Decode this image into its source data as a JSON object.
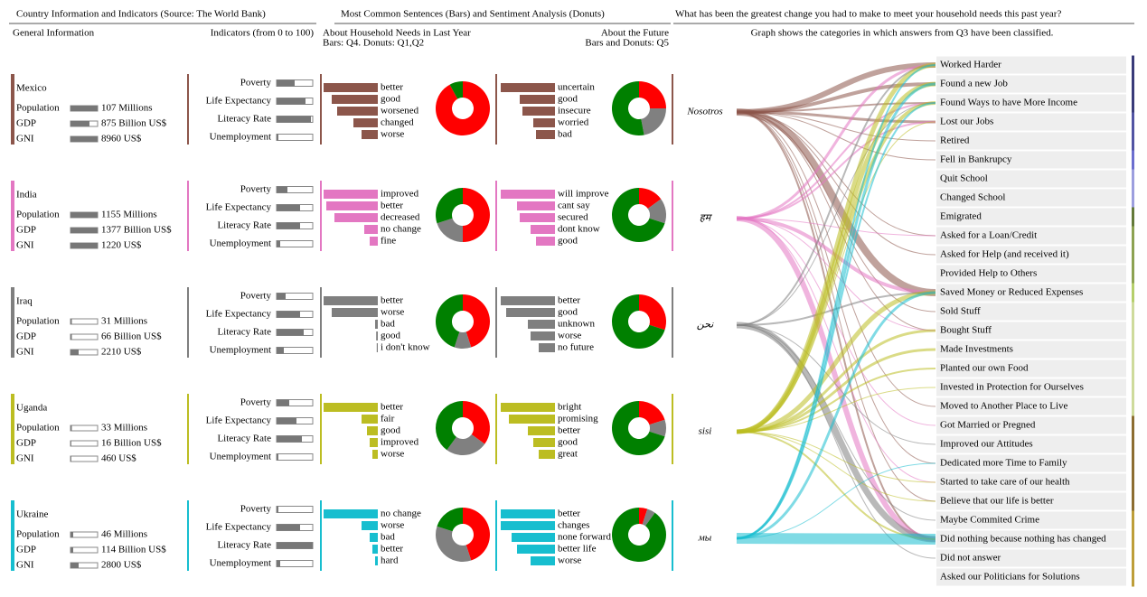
{
  "headers": {
    "info": "Country Information and Indicators (Source: The World Bank)",
    "sentences": "Most Common Sentences (Bars) and Sentiment Analysis (Donuts)",
    "question": "What has been the greatest change you had to make to meet your household needs this past year?"
  },
  "subheaders": {
    "general": "General Information",
    "indicators": "Indicators (from 0 to 100)",
    "needs": [
      "About Household Needs in Last Year",
      "Bars: Q4. Donuts: Q1,Q2"
    ],
    "future": [
      "About the Future",
      "Bars and Donuts: Q5"
    ],
    "graph": "Graph shows the categories in which answers from Q3 have been classified."
  },
  "donut_colors": [
    "#ff0000",
    "#808080",
    "#008000"
  ],
  "countries": [
    {
      "name": "Mexico",
      "color": "#8c564b",
      "word": "Nosotros",
      "info": [
        {
          "label": "Population",
          "text": "107 Millions",
          "bar": 100
        },
        {
          "label": "GDP",
          "text": "875 Billion US$",
          "bar": 70
        },
        {
          "label": "GNI",
          "text": "8960 US$",
          "bar": 100
        }
      ],
      "indicators": [
        {
          "label": "Poverty",
          "value": 50
        },
        {
          "label": "Life Expectancy",
          "value": 80
        },
        {
          "label": "Literacy Rate",
          "value": 95
        },
        {
          "label": "Unemployment",
          "value": 5
        }
      ],
      "needs": {
        "labels": [
          "better",
          "good",
          "worsened",
          "changed",
          "worse"
        ],
        "values": [
          100,
          85,
          75,
          45,
          30
        ],
        "donut": [
          92,
          0,
          8
        ]
      },
      "future": {
        "labels": [
          "uncertain",
          "good",
          "insecure",
          "worried",
          "bad"
        ],
        "values": [
          100,
          65,
          60,
          40,
          35
        ],
        "donut": [
          25,
          22,
          53
        ]
      }
    },
    {
      "name": "India",
      "color": "#e377c2",
      "word": "हम",
      "info": [
        {
          "label": "Population",
          "text": "1155 Millions",
          "bar": 100
        },
        {
          "label": "GDP",
          "text": "1377 Billion US$",
          "bar": 100
        },
        {
          "label": "GNI",
          "text": "1220 US$",
          "bar": 100
        }
      ],
      "indicators": [
        {
          "label": "Poverty",
          "value": 30
        },
        {
          "label": "Life Expectancy",
          "value": 65
        },
        {
          "label": "Literacy Rate",
          "value": 65
        },
        {
          "label": "Unemployment",
          "value": 10
        }
      ],
      "needs": {
        "labels": [
          "improved",
          "better",
          "decreased",
          "no change",
          "fine"
        ],
        "values": [
          100,
          95,
          80,
          25,
          15
        ],
        "donut": [
          50,
          20,
          30
        ]
      },
      "future": {
        "labels": [
          "will improve",
          "cant say",
          "secured",
          "dont know",
          "good"
        ],
        "values": [
          100,
          70,
          65,
          45,
          35
        ],
        "donut": [
          15,
          15,
          70
        ]
      }
    },
    {
      "name": "Iraq",
      "color": "#7f7f7f",
      "word": "نحن",
      "info": [
        {
          "label": "Population",
          "text": "31 Millions",
          "bar": 5
        },
        {
          "label": "GDP",
          "text": "66 Billion US$",
          "bar": 5
        },
        {
          "label": "GNI",
          "text": "2210 US$",
          "bar": 30
        }
      ],
      "indicators": [
        {
          "label": "Poverty",
          "value": 25
        },
        {
          "label": "Life Expectancy",
          "value": 65
        },
        {
          "label": "Literacy Rate",
          "value": 75
        },
        {
          "label": "Unemployment",
          "value": 20
        }
      ],
      "needs": {
        "labels": [
          "better",
          "worse",
          "bad",
          "good",
          "i don't know"
        ],
        "values": [
          100,
          85,
          5,
          3,
          2
        ],
        "donut": [
          45,
          10,
          45
        ]
      },
      "future": {
        "labels": [
          "better",
          "good",
          "unknown",
          "worse",
          "no future"
        ],
        "values": [
          100,
          90,
          50,
          45,
          30
        ],
        "donut": [
          30,
          0,
          70
        ]
      }
    },
    {
      "name": "Uganda",
      "color": "#bcbd22",
      "word": "sisi",
      "info": [
        {
          "label": "Population",
          "text": "33 Millions",
          "bar": 5
        },
        {
          "label": "GDP",
          "text": "16 Billion US$",
          "bar": 3
        },
        {
          "label": "GNI",
          "text": "460 US$",
          "bar": 3
        }
      ],
      "indicators": [
        {
          "label": "Poverty",
          "value": 35
        },
        {
          "label": "Life Expectancy",
          "value": 55
        },
        {
          "label": "Literacy Rate",
          "value": 70
        },
        {
          "label": "Unemployment",
          "value": 5
        }
      ],
      "needs": {
        "labels": [
          "better",
          "fair",
          "good",
          "improved",
          "worse"
        ],
        "values": [
          100,
          30,
          20,
          15,
          10
        ],
        "donut": [
          35,
          25,
          40
        ]
      },
      "future": {
        "labels": [
          "bright",
          "promising",
          "better",
          "good",
          "great"
        ],
        "values": [
          100,
          85,
          50,
          40,
          30
        ],
        "donut": [
          20,
          10,
          70
        ]
      }
    },
    {
      "name": "Ukraine",
      "color": "#17becf",
      "word": "мы",
      "info": [
        {
          "label": "Population",
          "text": "46 Millions",
          "bar": 10
        },
        {
          "label": "GDP",
          "text": "114 Billion US$",
          "bar": 10
        },
        {
          "label": "GNI",
          "text": "2800 US$",
          "bar": 30
        }
      ],
      "indicators": [
        {
          "label": "Poverty",
          "value": 5
        },
        {
          "label": "Life Expectancy",
          "value": 65
        },
        {
          "label": "Literacy Rate",
          "value": 100
        },
        {
          "label": "Unemployment",
          "value": 10
        }
      ],
      "needs": {
        "labels": [
          "no change",
          "worse",
          "bad",
          "better",
          "hard"
        ],
        "values": [
          100,
          30,
          15,
          10,
          5
        ],
        "donut": [
          45,
          35,
          20
        ]
      },
      "future": {
        "labels": [
          "better",
          "changes",
          "none forward",
          "better life",
          "worse"
        ],
        "values": [
          100,
          100,
          80,
          70,
          45
        ],
        "donut": [
          5,
          5,
          90
        ]
      }
    }
  ],
  "categories": [
    {
      "label": "Worked Harder",
      "color": "#393b79"
    },
    {
      "label": "Found a new Job",
      "color": "#393b79"
    },
    {
      "label": "Found Ways to have More Income",
      "color": "#393b79"
    },
    {
      "label": "Lost our Jobs",
      "color": "#5254a3"
    },
    {
      "label": "Retired",
      "color": "#5254a3"
    },
    {
      "label": "Fell in Bankrupcy",
      "color": "#6b6ecf"
    },
    {
      "label": "Quit School",
      "color": "#9c9ede"
    },
    {
      "label": "Changed School",
      "color": "#9c9ede"
    },
    {
      "label": "Emigrated",
      "color": "#637939"
    },
    {
      "label": "Asked for a Loan/Credit",
      "color": "#8ca252"
    },
    {
      "label": "Asked for Help (and received it)",
      "color": "#8ca252"
    },
    {
      "label": "Provided Help to Others",
      "color": "#8ca252"
    },
    {
      "label": "Saved Money or Reduced Expenses",
      "color": "#b5cf6b"
    },
    {
      "label": "Sold Stuff",
      "color": "#cedb9c"
    },
    {
      "label": "Bought Stuff",
      "color": "#cedb9c"
    },
    {
      "label": "Made Investments",
      "color": "#cedb9c"
    },
    {
      "label": "Planted our own Food",
      "color": "#cedb9c"
    },
    {
      "label": "Invested in Protection for Ourselves",
      "color": "#cedb9c"
    },
    {
      "label": "Moved to Another Place to Live",
      "color": "#cedb9c"
    },
    {
      "label": "Got Married or Pregned",
      "color": "#8c6d31"
    },
    {
      "label": "Improved our Attitudes",
      "color": "#8c6d31"
    },
    {
      "label": "Dedicated more Time to Family",
      "color": "#8c6d31"
    },
    {
      "label": "Started to take care of our health",
      "color": "#8c6d31"
    },
    {
      "label": "Believe that our life is better",
      "color": "#8c6d31"
    },
    {
      "label": "Maybe Commited Crime",
      "color": "#bd9e39"
    },
    {
      "label": "Did nothing because nothing has changed",
      "color": "#bd9e39"
    },
    {
      "label": "Did not answer",
      "color": "#bd9e39"
    },
    {
      "label": "Asked our Politicians for Solutions",
      "color": "#bd9e39"
    }
  ],
  "flows": [
    {
      "from": 0,
      "to": 0,
      "value": 6
    },
    {
      "from": 0,
      "to": 1,
      "value": 4
    },
    {
      "from": 0,
      "to": 2,
      "value": 2
    },
    {
      "from": 0,
      "to": 3,
      "value": 3
    },
    {
      "from": 0,
      "to": 4,
      "value": 1
    },
    {
      "from": 0,
      "to": 5,
      "value": 1
    },
    {
      "from": 0,
      "to": 9,
      "value": 1
    },
    {
      "from": 0,
      "to": 10,
      "value": 1
    },
    {
      "from": 0,
      "to": 12,
      "value": 8
    },
    {
      "from": 0,
      "to": 13,
      "value": 1
    },
    {
      "from": 0,
      "to": 14,
      "value": 1
    },
    {
      "from": 0,
      "to": 18,
      "value": 1
    },
    {
      "from": 0,
      "to": 21,
      "value": 1
    },
    {
      "from": 0,
      "to": 23,
      "value": 1
    },
    {
      "from": 0,
      "to": 25,
      "value": 2
    },
    {
      "from": 1,
      "to": 0,
      "value": 3
    },
    {
      "from": 1,
      "to": 2,
      "value": 2
    },
    {
      "from": 1,
      "to": 3,
      "value": 2
    },
    {
      "from": 1,
      "to": 9,
      "value": 1
    },
    {
      "from": 1,
      "to": 12,
      "value": 4
    },
    {
      "from": 1,
      "to": 14,
      "value": 1
    },
    {
      "from": 1,
      "to": 19,
      "value": 1
    },
    {
      "from": 1,
      "to": 22,
      "value": 1
    },
    {
      "from": 1,
      "to": 25,
      "value": 6
    },
    {
      "from": 2,
      "to": 0,
      "value": 2
    },
    {
      "from": 2,
      "to": 2,
      "value": 1
    },
    {
      "from": 2,
      "to": 12,
      "value": 2
    },
    {
      "from": 2,
      "to": 20,
      "value": 1
    },
    {
      "from": 2,
      "to": 24,
      "value": 1
    },
    {
      "from": 2,
      "to": 25,
      "value": 7
    },
    {
      "from": 2,
      "to": 26,
      "value": 1
    },
    {
      "from": 3,
      "to": 0,
      "value": 5
    },
    {
      "from": 3,
      "to": 1,
      "value": 5
    },
    {
      "from": 3,
      "to": 2,
      "value": 4
    },
    {
      "from": 3,
      "to": 3,
      "value": 1
    },
    {
      "from": 3,
      "to": 12,
      "value": 5
    },
    {
      "from": 3,
      "to": 14,
      "value": 3
    },
    {
      "from": 3,
      "to": 15,
      "value": 3
    },
    {
      "from": 3,
      "to": 16,
      "value": 2
    },
    {
      "from": 3,
      "to": 17,
      "value": 1
    },
    {
      "from": 3,
      "to": 22,
      "value": 1
    },
    {
      "from": 3,
      "to": 23,
      "value": 1
    },
    {
      "from": 3,
      "to": 25,
      "value": 2
    },
    {
      "from": 4,
      "to": 0,
      "value": 2
    },
    {
      "from": 4,
      "to": 1,
      "value": 3
    },
    {
      "from": 4,
      "to": 2,
      "value": 2
    },
    {
      "from": 4,
      "to": 12,
      "value": 3
    },
    {
      "from": 4,
      "to": 21,
      "value": 1
    },
    {
      "from": 4,
      "to": 25,
      "value": 12
    }
  ]
}
